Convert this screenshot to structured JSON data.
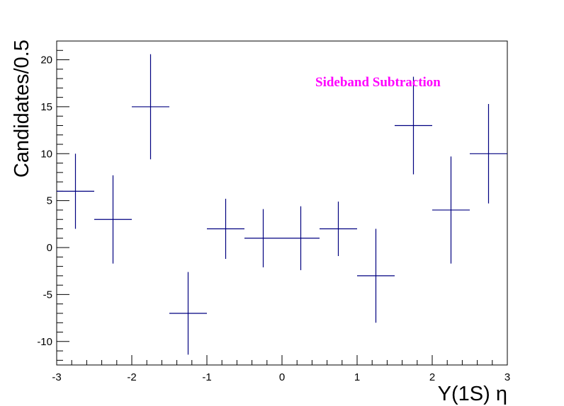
{
  "chart_data": {
    "type": "scatter",
    "xlabel": "Υ(1S) η",
    "ylabel": "Candidates/0.5",
    "annotation": "Sideband Subtraction",
    "annotation_color": "#ff00ff",
    "marker_color": "#000080",
    "xlim": [
      -3,
      3
    ],
    "ylim": [
      -12.5,
      22
    ],
    "x_ticks": [
      -3,
      -2,
      -1,
      0,
      1,
      2,
      3
    ],
    "y_ticks": [
      -10,
      -5,
      0,
      5,
      10,
      15,
      20
    ],
    "bin_width": 0.5,
    "series": [
      {
        "x": [
          -2.75,
          -2.25,
          -1.75,
          -1.25,
          -0.75,
          -0.25,
          0.25,
          0.75,
          1.25,
          1.75,
          2.25,
          2.75
        ],
        "y": [
          6,
          3,
          15,
          -7,
          2,
          1,
          1,
          2,
          -3,
          13,
          4,
          10
        ],
        "y_err": [
          4,
          4.7,
          5.6,
          4.4,
          3.2,
          3.1,
          3.4,
          2.9,
          5,
          5.2,
          5.7,
          5.3
        ]
      }
    ]
  }
}
